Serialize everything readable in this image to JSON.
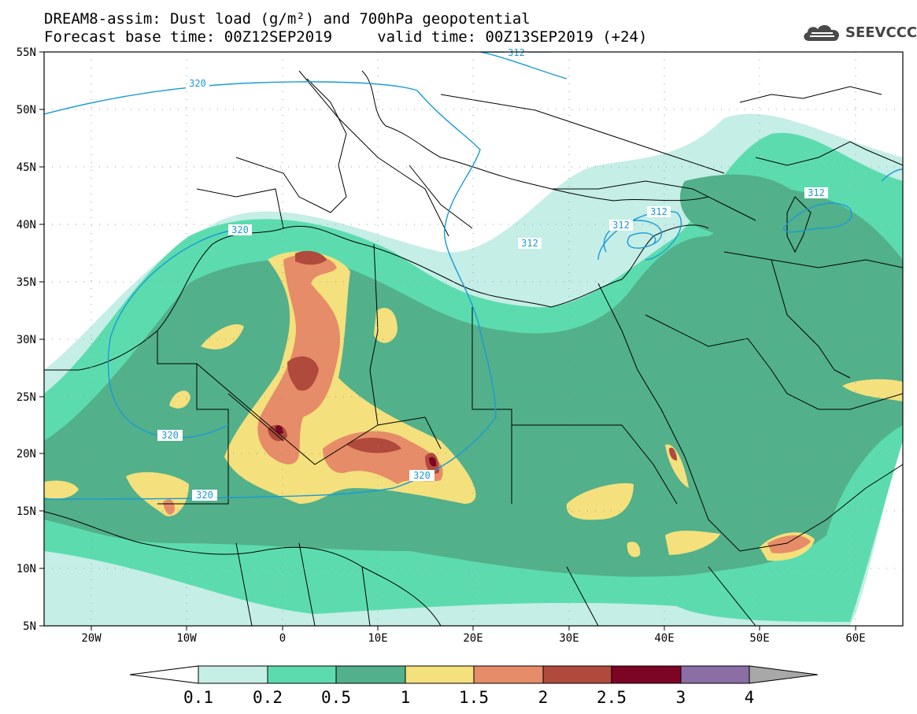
{
  "header": {
    "title_line1": "DREAM8-assim: Dust load (g/m²) and 700hPa geopotential",
    "title_line2": "Forecast base time: 00Z12SEP2019     valid time: 00Z13SEP2019 (+24)"
  },
  "logo": {
    "text": "SEEVCCC",
    "icon": "cloud-icon"
  },
  "map": {
    "lon_labels": [
      "20W",
      "10W",
      "0",
      "10E",
      "20E",
      "30E",
      "40E",
      "50E",
      "60E"
    ],
    "lat_labels": [
      "55N",
      "50N",
      "45N",
      "40N",
      "35N",
      "30N",
      "25N",
      "20N",
      "15N",
      "10N",
      "5N"
    ],
    "contour_labels": [
      "312",
      "320",
      "312",
      "320",
      "312",
      "312",
      "312",
      "320",
      "320",
      "320"
    ],
    "contour_color": "#1a9ad6"
  },
  "colorbar": {
    "tick_labels": [
      "0.1",
      "0.2",
      "0.5",
      "1",
      "1.5",
      "2",
      "2.5",
      "3",
      "4"
    ],
    "colors": [
      "#c4eee6",
      "#5cdcae",
      "#52b08a",
      "#f4e07c",
      "#e68c68",
      "#b04a3c",
      "#7c0424",
      "#8a6ea4",
      "#a8a8a8"
    ]
  }
}
